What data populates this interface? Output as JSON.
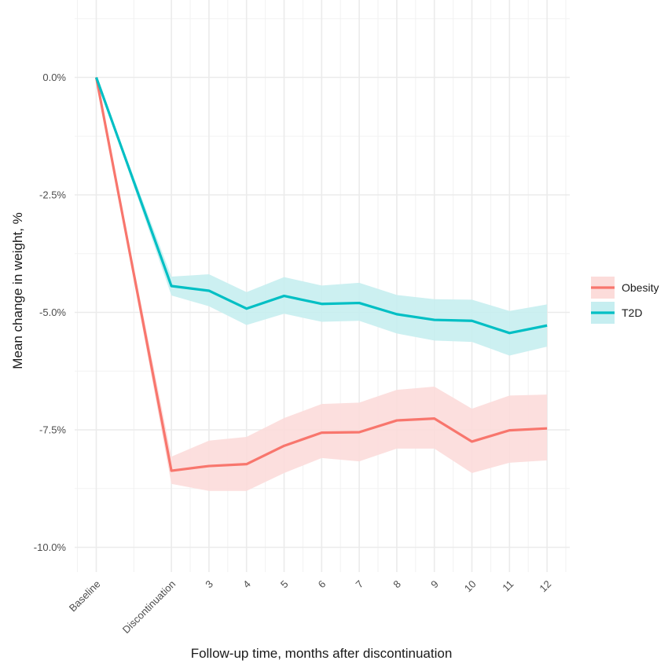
{
  "chart_data": {
    "type": "line",
    "title": "",
    "xlabel": "Follow-up time, months after discontinuation",
    "ylabel": "Mean change in weight, %",
    "categories": [
      "Baseline",
      "Discontinuation",
      "3",
      "4",
      "5",
      "6",
      "7",
      "8",
      "9",
      "10",
      "11",
      "12"
    ],
    "x_positions": [
      0,
      2,
      3,
      4,
      5,
      6,
      7,
      8,
      9,
      10,
      11,
      12
    ],
    "ylim": [
      -11.0,
      1.3
    ],
    "yticks": [
      0.0,
      -2.5,
      -5.0,
      -7.5,
      -10.0
    ],
    "ytick_labels": [
      "0.0%",
      "-2.5%",
      "-5.0%",
      "-7.5%",
      "-10.0%"
    ],
    "grid": true,
    "legend_position": "right",
    "series": [
      {
        "name": "Obesity",
        "color": "#F8766D",
        "band_color": "#FCDCDA",
        "values": [
          0.0,
          -8.37,
          -8.27,
          -8.23,
          -7.84,
          -7.56,
          -7.55,
          -7.3,
          -7.26,
          -7.75,
          -7.51,
          -7.47
        ],
        "lower": [
          0.0,
          -8.65,
          -8.8,
          -8.8,
          -8.42,
          -8.1,
          -8.17,
          -7.9,
          -7.9,
          -8.42,
          -8.2,
          -8.15
        ],
        "upper": [
          0.0,
          -8.07,
          -7.73,
          -7.65,
          -7.25,
          -6.95,
          -6.92,
          -6.65,
          -6.58,
          -7.05,
          -6.77,
          -6.75
        ]
      },
      {
        "name": "T2D",
        "color": "#00BFC4",
        "band_color": "#C6EEF0",
        "values": [
          0.0,
          -4.44,
          -4.54,
          -4.92,
          -4.65,
          -4.82,
          -4.8,
          -5.04,
          -5.16,
          -5.18,
          -5.44,
          -5.28
        ],
        "lower": [
          0.0,
          -4.64,
          -4.87,
          -5.27,
          -5.03,
          -5.2,
          -5.18,
          -5.45,
          -5.6,
          -5.63,
          -5.92,
          -5.73
        ],
        "upper": [
          0.0,
          -4.24,
          -4.19,
          -4.57,
          -4.25,
          -4.43,
          -4.37,
          -4.63,
          -4.72,
          -4.73,
          -4.97,
          -4.83
        ]
      }
    ]
  }
}
